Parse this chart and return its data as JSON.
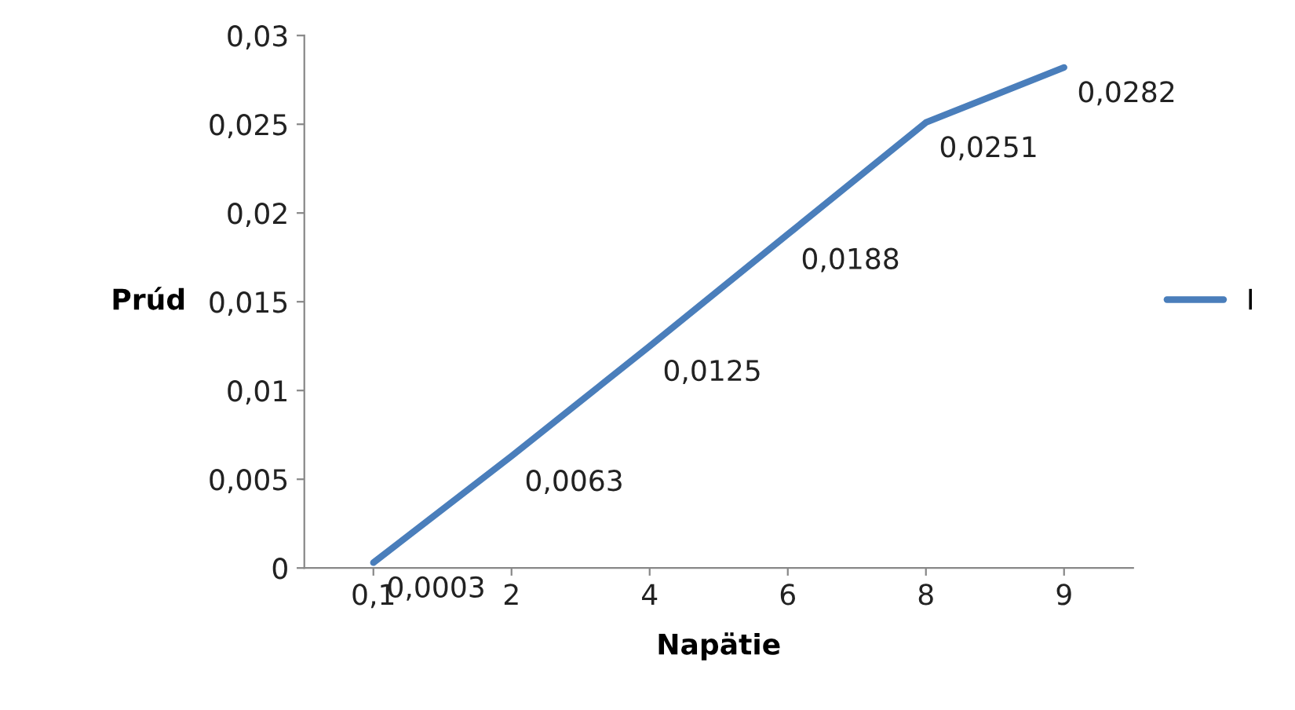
{
  "chart_data": {
    "type": "line",
    "xlabel": "Napätie",
    "ylabel": "Prúd",
    "categories": [
      "0,1",
      "2",
      "4",
      "6",
      "8",
      "9"
    ],
    "series": [
      {
        "name": "I",
        "color": "#4a7ebb",
        "values": [
          0.0003,
          0.0063,
          0.0125,
          0.0188,
          0.0251,
          0.0282
        ],
        "value_labels": [
          "0,0003",
          "0,0063",
          "0,0125",
          "0,0188",
          "0,0251",
          "0,0282"
        ]
      }
    ],
    "ylim": [
      0,
      0.03
    ],
    "yticks": [
      {
        "value": 0,
        "label": "0"
      },
      {
        "value": 0.005,
        "label": "0,005"
      },
      {
        "value": 0.01,
        "label": "0,01"
      },
      {
        "value": 0.015,
        "label": "0,015"
      },
      {
        "value": 0.02,
        "label": "0,02"
      },
      {
        "value": 0.025,
        "label": "0,025"
      },
      {
        "value": 0.03,
        "label": "0,03"
      }
    ],
    "grid": false,
    "legend": "right",
    "marker": "none",
    "line_style": "solid"
  }
}
